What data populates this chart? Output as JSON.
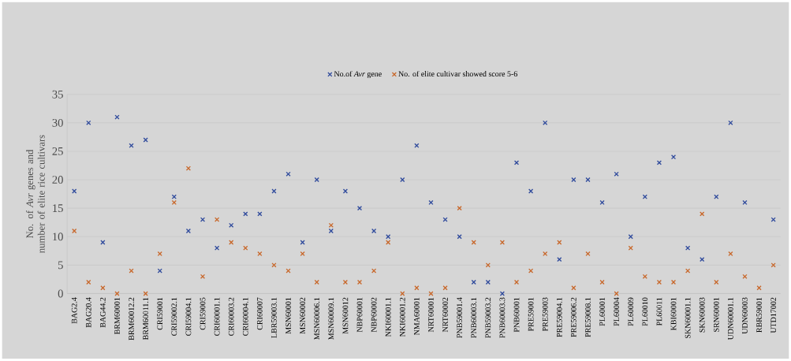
{
  "chart_data": {
    "type": "scatter",
    "ylabel": "No. of *Avr* genes and number of elite rice cultivars",
    "categories": [
      "BAG2.4",
      "BAG20.4",
      "BAG44.2",
      "BRM60001",
      "BRM60012.2",
      "BRM60011.1",
      "CRI59001",
      "CRI59002.1",
      "CRI59004.1",
      "CRI59005",
      "CRI60001.1",
      "CRI60003.2",
      "CRI60004.1",
      "CRI60007",
      "LBR59003.1",
      "MSN60001",
      "MSN60002",
      "MSN60006.1",
      "MSN60009.1",
      "MSN60012",
      "NBP60001",
      "NBP60002",
      "NKI60001.1",
      "NKI60001.2",
      "NMA60001",
      "NRT60001",
      "NRT60002",
      "PNB59001.4",
      "PNB60003.1",
      "PNB59003.2",
      "PNB60003.3",
      "PNB60001",
      "PRE59001",
      "PRE59003",
      "PRE59004.1",
      "PRE59006.2",
      "PRE59008.1",
      "PL60001",
      "PL60004",
      "PL60009",
      "PL60010",
      "PL60011",
      "KBI60001",
      "SKN60001.1",
      "SKN60003",
      "SRN60001",
      "UDN60001.1",
      "UDN60003",
      "RBR59001",
      "UTD17002"
    ],
    "series": [
      {
        "name": "No.of *Avr* gene",
        "color": "#2f4a9c",
        "values": [
          18,
          30,
          9,
          31,
          26,
          27,
          4,
          17,
          11,
          13,
          8,
          12,
          14,
          14,
          18,
          21,
          9,
          20,
          11,
          18,
          15,
          11,
          10,
          20,
          26,
          16,
          13,
          10,
          2,
          2,
          0,
          23,
          18,
          30,
          6,
          20,
          20,
          16,
          21,
          10,
          17,
          23,
          24,
          8,
          6,
          17,
          30,
          16,
          null,
          13
        ]
      },
      {
        "name": "No. of elite cultivar showed score 5-6",
        "color": "#c8672a",
        "values": [
          11,
          2,
          1,
          0,
          4,
          0,
          7,
          16,
          22,
          3,
          13,
          9,
          8,
          7,
          5,
          4,
          7,
          2,
          12,
          2,
          2,
          4,
          9,
          0,
          1,
          0,
          1,
          15,
          9,
          5,
          9,
          2,
          4,
          7,
          9,
          1,
          7,
          2,
          0,
          8,
          3,
          2,
          2,
          4,
          14,
          2,
          7,
          3,
          1,
          5
        ]
      }
    ],
    "ylim": [
      0,
      35
    ],
    "yticks": [
      0,
      5,
      10,
      15,
      20,
      25,
      30,
      35
    ],
    "grid": "y",
    "legend": "top",
    "marker": "cross"
  }
}
